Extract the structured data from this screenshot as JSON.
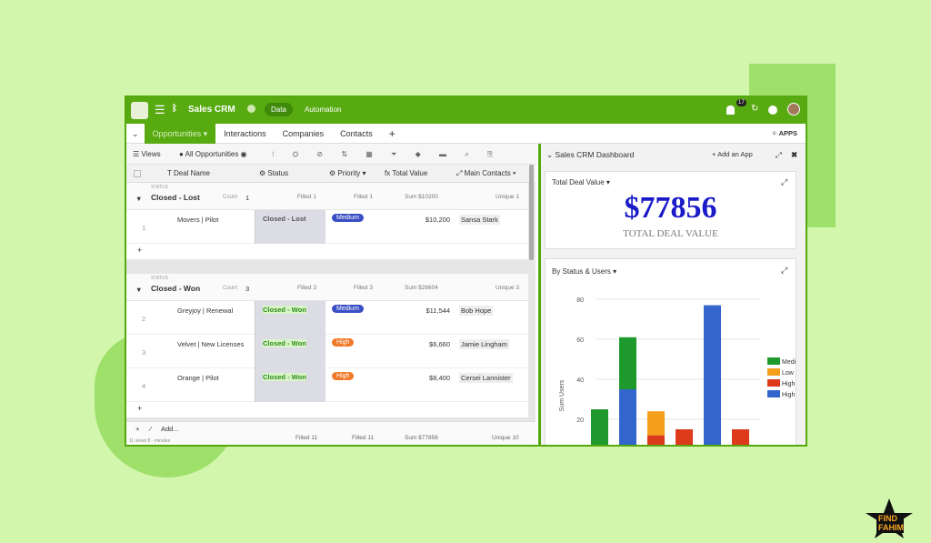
{
  "app": {
    "title": "Sales CRM",
    "nav": [
      "Data",
      "Automation"
    ],
    "notification_count": "17",
    "apps_label": "APPS"
  },
  "tabs": [
    "Opportunities",
    "Interactions",
    "Companies",
    "Contacts"
  ],
  "toolbar": {
    "views": "Views",
    "view_name": "All Opportunities"
  },
  "columns": [
    "Deal Name",
    "Status",
    "Priority",
    "Total Value",
    "Main Contacts"
  ],
  "groups": [
    {
      "label": "STATUS",
      "name": "Closed - Lost",
      "count_label": "Count",
      "count": "1",
      "filled_status": "Filled 1",
      "filled_priority": "Filled 1",
      "sum": "Sum $10200",
      "unique": "Unique 1",
      "rows": [
        {
          "n": "1",
          "deal": "Movers | Pilot",
          "status": "Closed - Lost",
          "priority": "Medium",
          "value": "$10,200",
          "contact": "Sansa Stark"
        }
      ]
    },
    {
      "label": "STATUS",
      "name": "Closed - Won",
      "count_label": "Count",
      "count": "3",
      "filled_status": "Filled 3",
      "filled_priority": "Filled 3",
      "sum": "Sum $26604",
      "unique": "Unique 3",
      "rows": [
        {
          "n": "2",
          "deal": "Greyjoy | Renewal",
          "status": "Closed - Won",
          "priority": "Medium",
          "value": "$11,544",
          "contact": "Bob Hope"
        },
        {
          "n": "3",
          "deal": "Velvet | New Licenses",
          "status": "Closed - Won",
          "priority": "High",
          "value": "$6,660",
          "contact": "Jamie Lingham"
        },
        {
          "n": "4",
          "deal": "Orange | Pilot",
          "status": "Closed - Won",
          "priority": "High",
          "value": "$8,400",
          "contact": "Cersei Lannister"
        }
      ]
    }
  ],
  "footer": {
    "add": "Add...",
    "info": "11 views  8 - minutes",
    "filled_status": "Filled 11",
    "filled_priority": "Filled 11",
    "sum": "Sum $77856",
    "unique": "Unique 10"
  },
  "colors": {
    "brand": "#57aa10",
    "medium": "#3b4fc4",
    "high": "#f07a2a",
    "won": "#2e8b1a"
  },
  "dashboard": {
    "title": "Sales CRM Dashboard",
    "add_app": "Add an App",
    "kpi": {
      "title": "Total Deal Value",
      "value": "$77856",
      "label": "TOTAL DEAL VALUE"
    },
    "chart_title": "By Status & Users"
  },
  "chart_data": {
    "type": "bar",
    "stacked": true,
    "ylabel": "Sum Users",
    "yticks": [
      20,
      40,
      60,
      80
    ],
    "grid": true,
    "legend": "right",
    "legend_entries": [
      {
        "name": "Medi",
        "color": "#1e9a2c"
      },
      {
        "name": "Low",
        "color": "#f59e1c"
      },
      {
        "name": "High",
        "color": "#dc3a1a"
      },
      {
        "name": "High",
        "color": "#3366cc"
      }
    ],
    "bars": [
      [
        {
          "series": 0,
          "value": 25
        }
      ],
      [
        {
          "series": 3,
          "value": 35
        },
        {
          "series": 0,
          "value": 26
        }
      ],
      [
        {
          "series": 2,
          "value": 12
        },
        {
          "series": 1,
          "value": 12
        }
      ],
      [
        {
          "series": 2,
          "value": 15
        }
      ],
      [
        {
          "series": 3,
          "value": 77
        }
      ],
      [
        {
          "series": 2,
          "value": 15
        }
      ]
    ]
  },
  "watermark": "FIND FAHIM"
}
